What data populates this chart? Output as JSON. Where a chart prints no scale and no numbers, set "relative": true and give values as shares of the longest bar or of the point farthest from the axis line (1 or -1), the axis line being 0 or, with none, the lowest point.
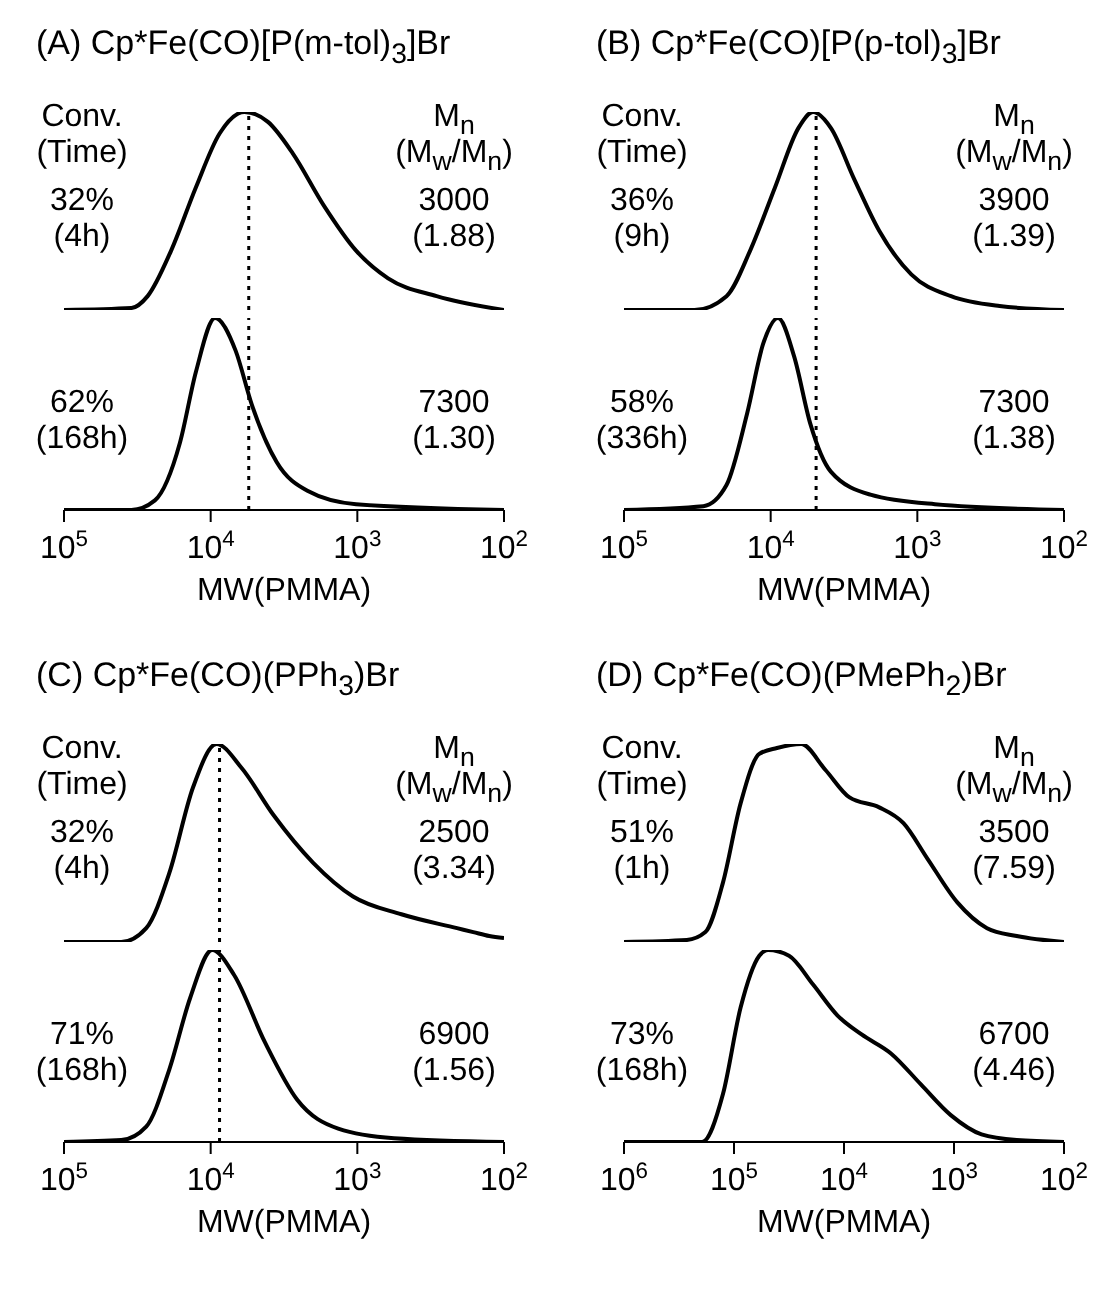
{
  "chart_data": [
    {
      "type": "line",
      "title": "(A) Cp*Fe(CO)[P(m-tol)$_{3}$]Br",
      "relative": true,
      "log": "x",
      "tick_labels": false,
      "xlim": [
        100000,
        100
      ],
      "annotations": [
        "Conv.",
        "M$_{n}$",
        "(Time)",
        "(M$_{w}$/M$_{n}$)",
        "32%",
        "3000",
        "(4h)",
        "(1.88)"
      ],
      "ref_lines": [
        {
          "axis": "x",
          "value": 5500,
          "line_style": "dotted",
          "color": "#000000"
        }
      ],
      "series": [
        {
          "color": "#000000",
          "x": [
            100000,
            34700,
            26900,
            18600,
            12600,
            8710,
            5890,
            4070,
            2750,
            1700,
            1020,
            617,
            288,
            100
          ],
          "values": [
            0,
            0.01,
            0.07,
            0.3,
            0.62,
            0.89,
            1,
            0.95,
            0.79,
            0.53,
            0.3,
            0.16,
            0.07,
            0
          ]
        }
      ]
    },
    {
      "type": "line",
      "xlabel": "MW(PMMA)",
      "relative": true,
      "log": "x",
      "xlim": [
        100000,
        100
      ],
      "xticks": [
        {
          "value": 100000,
          "label": "10$^{5}$"
        },
        {
          "value": 10000,
          "label": "10$^{4}$"
        },
        {
          "value": 1000,
          "label": "10$^{3}$"
        },
        {
          "value": 100,
          "label": "10$^{2}$"
        }
      ],
      "annotations": [
        "62%",
        "7300",
        "(168h)",
        "(1.30)"
      ],
      "ref_lines": [
        {
          "axis": "x",
          "value": 5500,
          "line_style": "dotted",
          "color": "#000000"
        }
      ],
      "series": [
        {
          "color": "#000000",
          "x": [
            100000,
            34700,
            24000,
            16200,
            12600,
            9330,
            6760,
            5250,
            3550,
            2190,
            1020,
            100
          ],
          "values": [
            0,
            0,
            0.05,
            0.35,
            0.72,
            1,
            0.83,
            0.55,
            0.25,
            0.1,
            0.03,
            0
          ]
        }
      ]
    },
    {
      "type": "line",
      "title": "(B) Cp*Fe(CO)[P(p-tol)$_{3}$]Br",
      "relative": true,
      "log": "x",
      "tick_labels": false,
      "xlim": [
        100000,
        100
      ],
      "annotations": [
        "Conv.",
        "M$_{n}$",
        "(Time)",
        "(M$_{w}$/M$_{n}$)",
        "36%",
        "3900",
        "(9h)",
        "(1.39)"
      ],
      "ref_lines": [
        {
          "axis": "x",
          "value": 4900,
          "line_style": "dotted",
          "color": "#000000"
        }
      ],
      "series": [
        {
          "color": "#000000",
          "x": [
            100000,
            33100,
            20000,
            13800,
            9330,
            6460,
            5130,
            3890,
            2690,
            1820,
            1100,
            589,
            275,
            100
          ],
          "values": [
            0,
            0,
            0.07,
            0.3,
            0.62,
            0.92,
            1,
            0.92,
            0.66,
            0.4,
            0.18,
            0.07,
            0.02,
            0
          ]
        }
      ]
    },
    {
      "type": "line",
      "xlabel": "MW(PMMA)",
      "relative": true,
      "log": "x",
      "xlim": [
        100000,
        100
      ],
      "xticks": [
        {
          "value": 100000,
          "label": "10$^{5}$"
        },
        {
          "value": 10000,
          "label": "10$^{4}$"
        },
        {
          "value": 1000,
          "label": "10$^{3}$"
        },
        {
          "value": 100,
          "label": "10$^{2}$"
        }
      ],
      "annotations": [
        "58%",
        "7300",
        "(336h)",
        "(1.38)"
      ],
      "ref_lines": [
        {
          "axis": "x",
          "value": 4900,
          "line_style": "dotted",
          "color": "#000000"
        }
      ],
      "series": [
        {
          "color": "#000000",
          "x": [
            100000,
            28800,
            20000,
            14500,
            11200,
            8910,
            6920,
            5370,
            3890,
            2090,
            759,
            100
          ],
          "values": [
            0,
            0.02,
            0.13,
            0.5,
            0.87,
            1,
            0.8,
            0.45,
            0.2,
            0.08,
            0.03,
            0
          ]
        }
      ]
    },
    {
      "type": "line",
      "title": "(C) Cp*Fe(CO)(PPh$_{3}$)Br",
      "relative": true,
      "log": "x",
      "tick_labels": false,
      "xlim": [
        100000,
        100
      ],
      "annotations": [
        "Conv.",
        "M$_{n}$",
        "(Time)",
        "(M$_{w}$/M$_{n}$)",
        "32%",
        "2500",
        "(4h)",
        "(3.34)"
      ],
      "ref_lines": [
        {
          "axis": "x",
          "value": 8700,
          "line_style": "dotted",
          "color": "#000000"
        }
      ],
      "series": [
        {
          "color": "#000000",
          "x": [
            100000,
            40700,
            27500,
            19100,
            13200,
            9120,
            6170,
            3720,
            2000,
            1070,
            501,
            209,
            162,
            126,
            100
          ],
          "values": [
            0,
            0,
            0.07,
            0.35,
            0.78,
            1,
            0.88,
            0.64,
            0.4,
            0.23,
            0.14,
            0.07,
            0.05,
            0.03,
            0.02
          ]
        }
      ]
    },
    {
      "type": "line",
      "xlabel": "MW(PMMA)",
      "relative": true,
      "log": "x",
      "xlim": [
        100000,
        100
      ],
      "xticks": [
        {
          "value": 100000,
          "label": "10$^{5}$"
        },
        {
          "value": 10000,
          "label": "10$^{4}$"
        },
        {
          "value": 1000,
          "label": "10$^{3}$"
        },
        {
          "value": 100,
          "label": "10$^{2}$"
        }
      ],
      "annotations": [
        "71%",
        "6900",
        "(168h)",
        "(1.56)"
      ],
      "ref_lines": [
        {
          "axis": "x",
          "value": 8700,
          "line_style": "dotted",
          "color": "#000000"
        }
      ],
      "series": [
        {
          "color": "#000000",
          "x": [
            100000,
            40700,
            27500,
            19100,
            13800,
            9770,
            6920,
            4270,
            2570,
            1350,
            562,
            100
          ],
          "values": [
            0,
            0.01,
            0.08,
            0.38,
            0.75,
            1,
            0.87,
            0.52,
            0.22,
            0.07,
            0.02,
            0
          ]
        }
      ]
    },
    {
      "type": "line",
      "title": "(D) Cp*Fe(CO)(PMePh$_{2}$)Br",
      "relative": true,
      "log": "x",
      "tick_labels": false,
      "xlim": [
        1000000,
        100
      ],
      "annotations": [
        "Conv.",
        "M$_{n}$",
        "(Time)",
        "(M$_{w}$/M$_{n}$)",
        "51%",
        "3500",
        "(1h)",
        "(7.59)"
      ],
      "series": [
        {
          "color": "#000000",
          "x": [
            1000000,
            269000,
            182000,
            126000,
            87100,
            58900,
            40700,
            24500,
            14800,
            8910,
            4790,
            2880,
            1740,
            933,
            501,
            269,
            100
          ],
          "values": [
            0,
            0.01,
            0.05,
            0.3,
            0.7,
            0.95,
            0.98,
            1,
            0.87,
            0.73,
            0.68,
            0.6,
            0.42,
            0.2,
            0.07,
            0.03,
            0
          ]
        }
      ]
    },
    {
      "type": "line",
      "xlabel": "MW(PMMA)",
      "relative": true,
      "log": "x",
      "xlim": [
        1000000,
        100
      ],
      "xticks": [
        {
          "value": 1000000,
          "label": "10$^{6}$"
        },
        {
          "value": 100000,
          "label": "10$^{5}$"
        },
        {
          "value": 10000,
          "label": "10$^{4}$"
        },
        {
          "value": 1000,
          "label": "10$^{3}$"
        },
        {
          "value": 100,
          "label": "10$^{2}$"
        }
      ],
      "annotations": [
        "73%",
        "6700",
        "(168h)",
        "(4.46)"
      ],
      "series": [
        {
          "color": "#000000",
          "x": [
            1000000,
            195000,
            126000,
            87100,
            58900,
            49000,
            31600,
            19100,
            11500,
            6920,
            3720,
            2000,
            1070,
            562,
            269,
            100
          ],
          "values": [
            0,
            0,
            0.25,
            0.7,
            0.97,
            1,
            0.97,
            0.82,
            0.66,
            0.56,
            0.46,
            0.3,
            0.14,
            0.04,
            0.01,
            0
          ]
        }
      ]
    }
  ]
}
